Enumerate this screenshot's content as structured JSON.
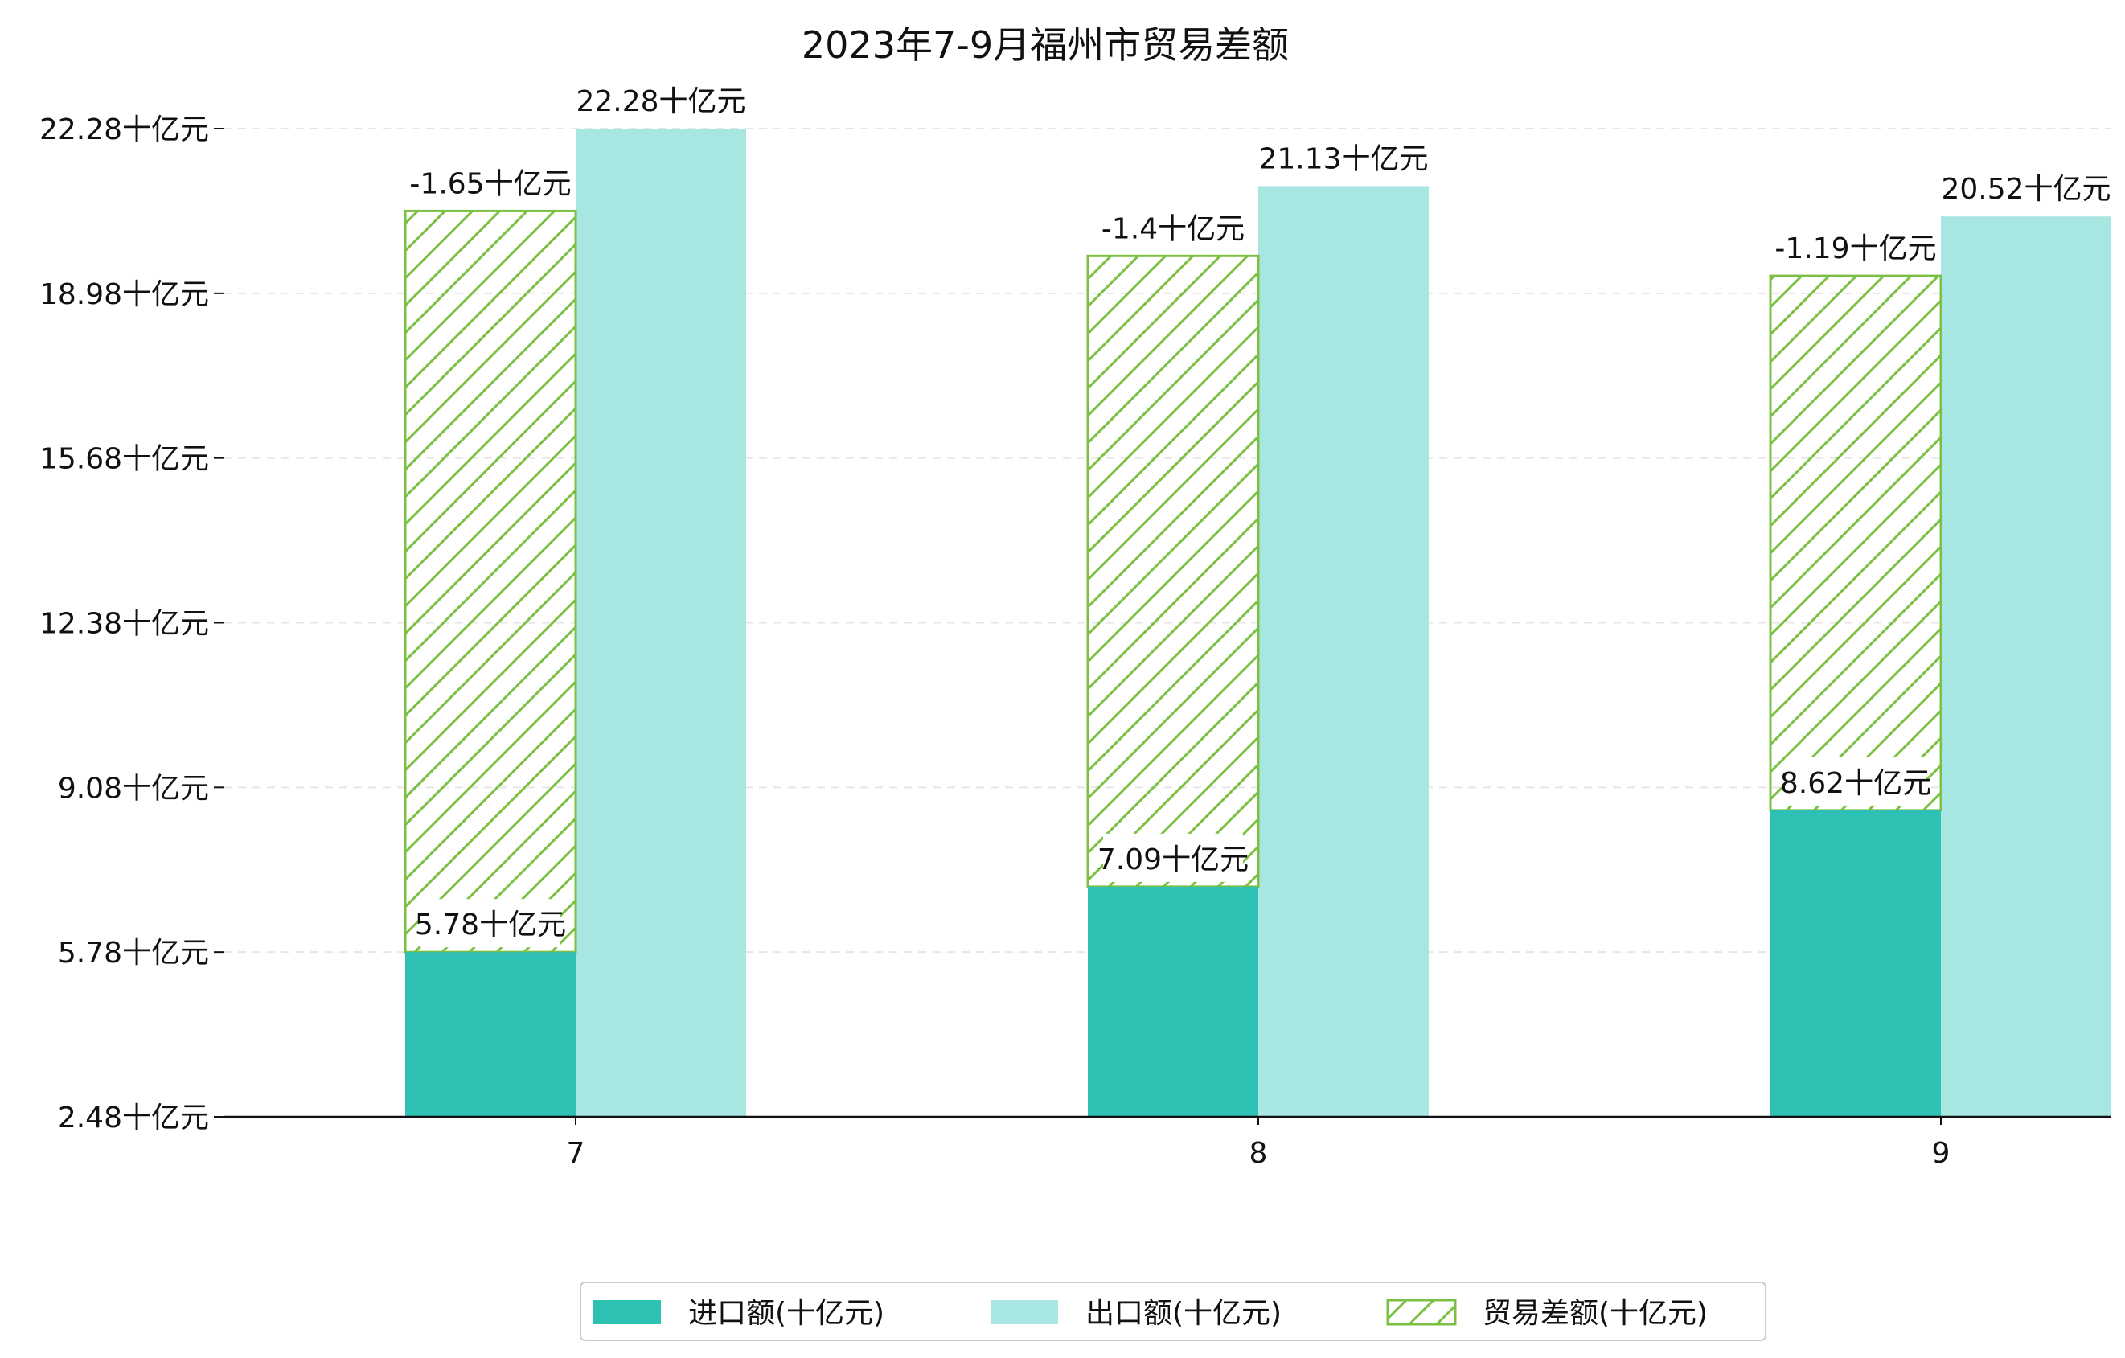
{
  "chart_data": {
    "type": "bar",
    "title": "2023年7-9月福州市贸易差额",
    "categories": [
      "7",
      "8",
      "9"
    ],
    "ylim": [
      2.48,
      22.28
    ],
    "yticks": [
      2.48,
      5.78,
      9.08,
      12.38,
      15.68,
      18.98,
      22.28
    ],
    "unit_suffix": "十亿元",
    "grid": "horizontal dashed",
    "legend_position": "bottom-center",
    "series": [
      {
        "name": "进口额(十亿元)",
        "values": [
          5.78,
          7.09,
          8.62
        ],
        "labels": [
          "5.78十亿元",
          "7.09十亿元",
          "8.62十亿元"
        ],
        "color": "#2ec0b2"
      },
      {
        "name": "出口额(十亿元)",
        "values": [
          22.28,
          21.13,
          20.52
        ],
        "labels": [
          "22.28十亿元",
          "21.13十亿元",
          "20.52十亿元"
        ],
        "color": "#a8e6e1"
      },
      {
        "name": "贸易差额(十亿元)",
        "values": [
          -1.65,
          -1.4,
          -1.19
        ],
        "labels": [
          "-1.65十亿元",
          "-1.4十亿元",
          "-1.19十亿元"
        ],
        "color": "#7cc043",
        "style": "hatched"
      }
    ]
  }
}
